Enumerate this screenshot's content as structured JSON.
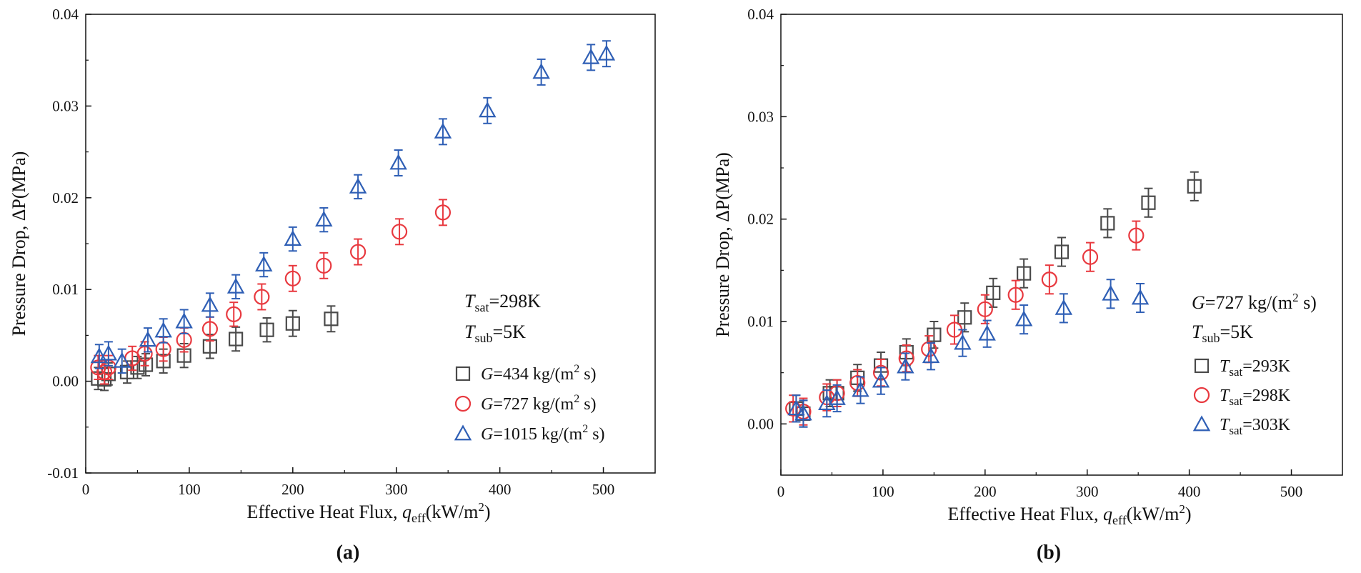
{
  "chart_data": [
    {
      "type": "scatter",
      "panel_label": "(a)",
      "xlabel": {
        "prefix": "Effective Heat Flux, ",
        "var": "q",
        "sub": "eff",
        "unit_pre": "(kW/m",
        "sup": "2",
        "unit_post": ")"
      },
      "ylabel": "Pressure Drop, ΔP(MPa)",
      "xlim": [
        0,
        550
      ],
      "ylim": [
        -0.01,
        0.04
      ],
      "xticks": [
        "0",
        "100",
        "200",
        "300",
        "400",
        "500"
      ],
      "yticks": [
        "-0.01",
        "0.00",
        "0.01",
        "0.02",
        "0.03",
        "0.04"
      ],
      "annotations": [
        {
          "var": "T",
          "sub": "sat",
          "text": "=298K"
        },
        {
          "var": "T",
          "sub": "sub",
          "text": "=5K"
        }
      ],
      "series": [
        {
          "legend_var": "G",
          "legend_text": "=434 kg/(m",
          "legend_sup": "2",
          "legend_tail": " s)",
          "marker": "square",
          "color": "#4a4a4a",
          "x": [
            12,
            18,
            22,
            40,
            50,
            58,
            75,
            95,
            120,
            145,
            175,
            200,
            237
          ],
          "y": [
            0.0003,
            0.0002,
            0.0008,
            0.001,
            0.0015,
            0.0018,
            0.0022,
            0.0028,
            0.0038,
            0.0046,
            0.0056,
            0.0063,
            0.0068
          ],
          "err": [
            0.0012,
            0.0012,
            0.0012,
            0.0012,
            0.0012,
            0.0012,
            0.0013,
            0.0013,
            0.0013,
            0.0013,
            0.0013,
            0.0014,
            0.0014
          ]
        },
        {
          "legend_var": "G",
          "legend_text": "=727 kg/(m",
          "legend_sup": "2",
          "legend_tail": " s)",
          "marker": "circle",
          "color": "#e8393f",
          "x": [
            12,
            18,
            22,
            45,
            57,
            75,
            95,
            120,
            143,
            170,
            200,
            230,
            263,
            303,
            345
          ],
          "y": [
            0.0015,
            0.001,
            0.0015,
            0.0025,
            0.003,
            0.0035,
            0.0045,
            0.0057,
            0.0073,
            0.0092,
            0.0112,
            0.0126,
            0.0141,
            0.0163,
            0.0184
          ],
          "err": [
            0.0013,
            0.0013,
            0.0013,
            0.0013,
            0.0013,
            0.0013,
            0.0013,
            0.0013,
            0.0013,
            0.0014,
            0.0014,
            0.0014,
            0.0014,
            0.0014,
            0.0014
          ]
        },
        {
          "legend_var": "G",
          "legend_text": "=1015 kg/(m",
          "legend_sup": "2",
          "legend_tail": " s)",
          "marker": "triangle",
          "color": "#2f5fb5",
          "x": [
            13,
            22,
            35,
            60,
            75,
            95,
            120,
            145,
            172,
            200,
            230,
            263,
            302,
            345,
            388,
            440,
            488,
            503
          ],
          "y": [
            0.0027,
            0.003,
            0.0022,
            0.0045,
            0.0055,
            0.0065,
            0.0083,
            0.0103,
            0.0127,
            0.0155,
            0.0176,
            0.0212,
            0.0238,
            0.0272,
            0.0295,
            0.0337,
            0.0353,
            0.0357
          ],
          "err": [
            0.0013,
            0.0013,
            0.0013,
            0.0013,
            0.0013,
            0.0013,
            0.0013,
            0.0013,
            0.0013,
            0.0013,
            0.0013,
            0.0013,
            0.0014,
            0.0014,
            0.0014,
            0.0014,
            0.0014,
            0.0014
          ]
        }
      ]
    },
    {
      "type": "scatter",
      "panel_label": "(b)",
      "xlabel": {
        "prefix": "Effective Heat Flux, ",
        "var": "q",
        "sub": "eff",
        "unit_pre": "(kW/m",
        "sup": "2",
        "unit_post": ")"
      },
      "ylabel": "Pressure Drop, ΔP(MPa)",
      "xlim": [
        0,
        550
      ],
      "ylim": [
        -0.005,
        0.04
      ],
      "xticks": [
        "0",
        "100",
        "200",
        "300",
        "400",
        "500"
      ],
      "yticks": [
        "0.00",
        "0.01",
        "0.02",
        "0.03",
        "0.04"
      ],
      "annotations": [
        {
          "var": "G",
          "sub": "",
          "text": "=727 kg/(m",
          "sup": "2",
          "tail": " s)"
        },
        {
          "var": "T",
          "sub": "sub",
          "text": "=5K"
        }
      ],
      "series": [
        {
          "legend_var": "T",
          "legend_sub": "sat",
          "legend_text": "=293K",
          "marker": "square",
          "color": "#4a4a4a",
          "x": [
            15,
            22,
            48,
            55,
            75,
            98,
            123,
            150,
            180,
            208,
            238,
            275,
            320,
            360,
            405
          ],
          "y": [
            0.0015,
            0.001,
            0.003,
            0.003,
            0.0045,
            0.0057,
            0.007,
            0.0087,
            0.0104,
            0.0128,
            0.0147,
            0.0168,
            0.0196,
            0.0216,
            0.0232
          ],
          "err": [
            0.0013,
            0.0013,
            0.0013,
            0.0013,
            0.0013,
            0.0013,
            0.0013,
            0.0013,
            0.0014,
            0.0014,
            0.0014,
            0.0014,
            0.0014,
            0.0014,
            0.0014
          ]
        },
        {
          "legend_var": "T",
          "legend_sub": "sat",
          "legend_text": "=298K",
          "marker": "circle",
          "color": "#e8393f",
          "x": [
            12,
            22,
            45,
            55,
            75,
            98,
            123,
            145,
            170,
            200,
            230,
            263,
            303,
            348
          ],
          "y": [
            0.0015,
            0.0012,
            0.0026,
            0.003,
            0.004,
            0.005,
            0.0064,
            0.0073,
            0.0092,
            0.0112,
            0.0126,
            0.0141,
            0.0163,
            0.0184
          ],
          "err": [
            0.0013,
            0.0013,
            0.0013,
            0.0013,
            0.0013,
            0.0013,
            0.0013,
            0.0013,
            0.0014,
            0.0014,
            0.0014,
            0.0014,
            0.0014,
            0.0014
          ]
        },
        {
          "legend_var": "T",
          "legend_sub": "sat",
          "legend_text": "=303K",
          "marker": "triangle",
          "color": "#2f5fb5",
          "x": [
            15,
            22,
            45,
            55,
            78,
            98,
            122,
            147,
            178,
            202,
            238,
            277,
            323,
            352
          ],
          "y": [
            0.0015,
            0.001,
            0.002,
            0.0025,
            0.0033,
            0.0042,
            0.0056,
            0.0066,
            0.0079,
            0.0088,
            0.0102,
            0.0113,
            0.0127,
            0.0123
          ],
          "err": [
            0.0013,
            0.0013,
            0.0013,
            0.0013,
            0.0013,
            0.0013,
            0.0013,
            0.0013,
            0.0013,
            0.0013,
            0.0014,
            0.0014,
            0.0014,
            0.0014
          ]
        }
      ]
    }
  ]
}
